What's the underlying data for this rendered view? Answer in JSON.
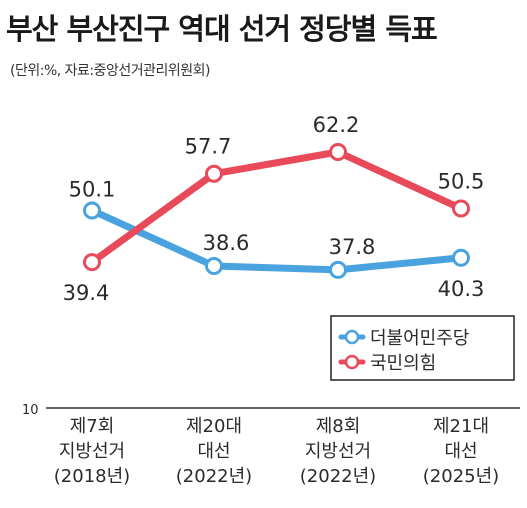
{
  "header": {
    "title": "부산 부산진구 역대 선거 정당별 득표",
    "subtitle": "(단위:%, 자료:중앙선거관리위원회)"
  },
  "colors": {
    "blue": "#4aa3df",
    "red": "#e84a5a"
  },
  "chart_data": {
    "type": "line",
    "title": "부산 부산진구 역대 선거 정당별 득표",
    "unit_note": "(단위:%, 자료:중앙선거관리위원회)",
    "categories": [
      [
        "제7회",
        "지방선거",
        "(2018년)"
      ],
      [
        "제20대",
        "대선",
        "(2022년)"
      ],
      [
        "제8회",
        "지방선거",
        "(2022년)"
      ],
      [
        "제21대",
        "대선",
        "(2025년)"
      ]
    ],
    "series": [
      {
        "name": "더불어민주당",
        "color": "#4aa3df",
        "values": [
          50.1,
          38.6,
          37.8,
          40.3
        ]
      },
      {
        "name": "국민의힘",
        "color": "#e84a5a",
        "values": [
          39.4,
          57.7,
          62.2,
          50.5
        ]
      }
    ],
    "value_labels": [
      [
        "50.1",
        "38.6",
        "37.8",
        "40.3"
      ],
      [
        "39.4",
        "57.7",
        "62.2",
        "50.5"
      ]
    ],
    "ymin_label": "10",
    "ylim": [
      10,
      70
    ],
    "legend_position": "right",
    "grid": false
  }
}
